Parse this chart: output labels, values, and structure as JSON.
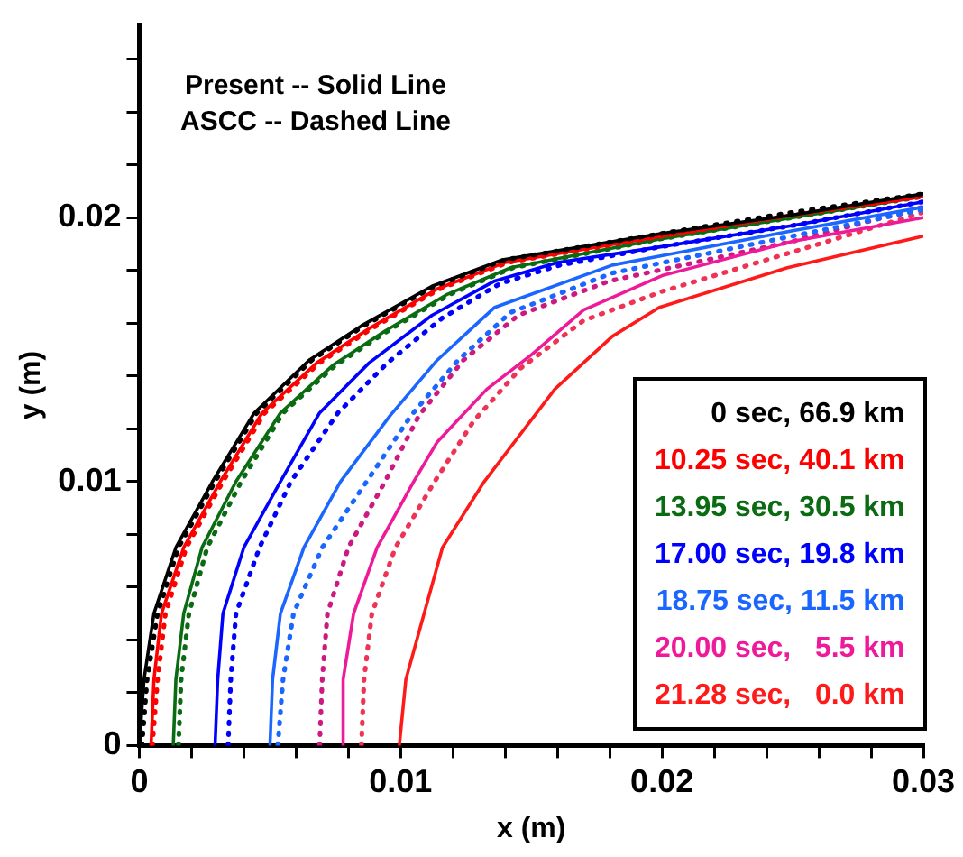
{
  "chart_data": {
    "type": "line",
    "xlabel": "x (m)",
    "ylabel": "y (m)",
    "xlim": [
      0,
      0.03
    ],
    "ylim": [
      0,
      0.0273
    ],
    "xticks": [
      0,
      {
        "value": 0.002,
        "label": null
      },
      {
        "value": 0.004,
        "label": null
      },
      {
        "value": 0.006,
        "label": null
      },
      {
        "value": 0.008,
        "label": null
      },
      0.01,
      {
        "value": 0.012,
        "label": null
      },
      {
        "value": 0.014,
        "label": null
      },
      {
        "value": 0.016,
        "label": null
      },
      {
        "value": 0.018,
        "label": null
      },
      0.02,
      {
        "value": 0.022,
        "label": null
      },
      {
        "value": 0.024,
        "label": null
      },
      {
        "value": 0.026,
        "label": null
      },
      {
        "value": 0.028,
        "label": null
      },
      0.03
    ],
    "yticks": [
      0,
      {
        "value": 0.002,
        "label": null
      },
      {
        "value": 0.004,
        "label": null
      },
      {
        "value": 0.006,
        "label": null
      },
      {
        "value": 0.008,
        "label": null
      },
      0.01,
      {
        "value": 0.012,
        "label": null
      },
      {
        "value": 0.014,
        "label": null
      },
      {
        "value": 0.016,
        "label": null
      },
      {
        "value": 0.018,
        "label": null
      },
      0.02,
      {
        "value": 0.022,
        "label": null
      },
      {
        "value": 0.024,
        "label": null
      },
      {
        "value": 0.026,
        "label": null
      }
    ],
    "grid": false,
    "legend": "bottom right",
    "marker": "none",
    "annotations": [
      "Present -- Solid Line",
      "ASCC -- Dashed Line"
    ],
    "series": [
      {
        "name": "0 sec, 66.9 km",
        "color": "#000000",
        "line_style": "solid",
        "x": [
          0,
          0.00018,
          0.00056,
          0.0014,
          0.0028,
          0.0044,
          0.0065,
          0.0085,
          0.0112,
          0.0139,
          0.02,
          0.025,
          0.03
        ],
        "values": [
          0,
          0.0025,
          0.005,
          0.0075,
          0.01,
          0.0126,
          0.0146,
          0.0159,
          0.0174,
          0.0184,
          0.0194,
          0.0201,
          0.0209
        ]
      },
      {
        "color": "#000000",
        "line_style": "dotted",
        "x": [
          0.0001,
          0.0003,
          0.0007,
          0.0015,
          0.0029,
          0.0045,
          0.0066,
          0.0086,
          0.0113,
          0.014,
          0.02,
          0.025,
          0.03
        ],
        "values": [
          0,
          0.0025,
          0.005,
          0.0075,
          0.01,
          0.0126,
          0.0146,
          0.0159,
          0.0174,
          0.0184,
          0.0194,
          0.0202,
          0.0209
        ]
      },
      {
        "name": "10.25 sec, 40.1 km",
        "color": "#ff0000",
        "line_style": "solid",
        "x": [
          0.00045,
          0.00056,
          0.00085,
          0.0017,
          0.0031,
          0.0047,
          0.0068,
          0.0088,
          0.0114,
          0.014,
          0.02,
          0.025,
          0.03
        ],
        "values": [
          0,
          0.0025,
          0.005,
          0.0075,
          0.01,
          0.0126,
          0.0145,
          0.0158,
          0.0173,
          0.0183,
          0.0193,
          0.0201,
          0.0208
        ]
      },
      {
        "color": "#ff0000",
        "line_style": "dotted",
        "x": [
          0.0005,
          0.0007,
          0.001,
          0.0018,
          0.0032,
          0.0048,
          0.0069,
          0.0089,
          0.0115,
          0.0141,
          0.02,
          0.025,
          0.03
        ],
        "values": [
          0,
          0.0025,
          0.005,
          0.0075,
          0.01,
          0.0126,
          0.0145,
          0.0158,
          0.0173,
          0.0183,
          0.0193,
          0.0201,
          0.0208
        ]
      },
      {
        "name": "13.95 sec, 30.5 km",
        "color": "#0b6b12",
        "line_style": "solid",
        "x": [
          0.0013,
          0.0014,
          0.0017,
          0.0024,
          0.0037,
          0.0054,
          0.0074,
          0.0094,
          0.0118,
          0.0142,
          0.02,
          0.025,
          0.03
        ],
        "values": [
          0,
          0.0025,
          0.005,
          0.0075,
          0.01,
          0.0126,
          0.0144,
          0.0157,
          0.0171,
          0.0181,
          0.0192,
          0.02,
          0.0208
        ]
      },
      {
        "color": "#0b6b12",
        "line_style": "dotted",
        "x": [
          0.0015,
          0.0016,
          0.0019,
          0.0026,
          0.0039,
          0.0055,
          0.0075,
          0.0095,
          0.0119,
          0.0143,
          0.02,
          0.025,
          0.03
        ],
        "values": [
          0,
          0.0025,
          0.005,
          0.0075,
          0.01,
          0.0126,
          0.0144,
          0.0157,
          0.0171,
          0.0181,
          0.0192,
          0.02,
          0.0208
        ]
      },
      {
        "name": "17.00 sec, 19.8 km",
        "color": "#0000ff",
        "line_style": "solid",
        "x": [
          0.0029,
          0.003,
          0.0032,
          0.004,
          0.0054,
          0.0069,
          0.0088,
          0.0112,
          0.0136,
          0.016,
          0.02,
          0.025,
          0.03
        ],
        "values": [
          0,
          0.0025,
          0.005,
          0.0075,
          0.01,
          0.0126,
          0.0145,
          0.0163,
          0.0176,
          0.0183,
          0.0189,
          0.0197,
          0.0206
        ]
      },
      {
        "color": "#0000ff",
        "line_style": "dotted",
        "x": [
          0.0034,
          0.0035,
          0.0037,
          0.0046,
          0.0058,
          0.0076,
          0.0095,
          0.0116,
          0.0138,
          0.0161,
          0.02,
          0.025,
          0.03
        ],
        "values": [
          0,
          0.0025,
          0.005,
          0.0075,
          0.01,
          0.0126,
          0.0145,
          0.0162,
          0.0175,
          0.0182,
          0.0189,
          0.0197,
          0.0206
        ]
      },
      {
        "name": "18.75 sec, 11.5 km",
        "color": "#1a66ff",
        "line_style": "solid",
        "x": [
          0.005,
          0.0051,
          0.0054,
          0.0063,
          0.0077,
          0.0096,
          0.0114,
          0.0136,
          0.0181,
          0.025,
          0.03
        ],
        "values": [
          0,
          0.0025,
          0.005,
          0.0075,
          0.01,
          0.0125,
          0.0146,
          0.0166,
          0.0182,
          0.0195,
          0.0204
        ]
      },
      {
        "color": "#1a66ff",
        "line_style": "dotted",
        "x": [
          0.0053,
          0.0055,
          0.0059,
          0.007,
          0.0087,
          0.0104,
          0.0122,
          0.0142,
          0.0181,
          0.025,
          0.03
        ],
        "values": [
          0,
          0.0025,
          0.005,
          0.0075,
          0.01,
          0.0125,
          0.0146,
          0.0164,
          0.0179,
          0.0193,
          0.0203
        ]
      },
      {
        "name": "20.00 sec,   5.5 km",
        "color": "#ee1a9a",
        "line_style": "solid",
        "x": [
          0.0078,
          0.0078,
          0.0082,
          0.0091,
          0.0105,
          0.0114,
          0.0133,
          0.015,
          0.017,
          0.02,
          0.025,
          0.03
        ],
        "values": [
          0,
          0.0025,
          0.005,
          0.0075,
          0.01,
          0.0115,
          0.0135,
          0.0148,
          0.0165,
          0.0178,
          0.0191,
          0.02
        ]
      },
      {
        "color": "#cc1a80",
        "line_style": "dotted",
        "x": [
          0.0069,
          0.007,
          0.0072,
          0.008,
          0.0094,
          0.0107,
          0.0124,
          0.0145,
          0.018,
          0.025,
          0.03
        ],
        "values": [
          0,
          0.0025,
          0.005,
          0.0075,
          0.01,
          0.0125,
          0.0146,
          0.0163,
          0.0176,
          0.0191,
          0.0204
        ]
      },
      {
        "name": "21.28 sec,   0.0 km",
        "color": "#ff1a1a",
        "line_style": "solid",
        "x": [
          0.00995,
          0.0102,
          0.0109,
          0.0116,
          0.0132,
          0.0159,
          0.0181,
          0.0199,
          0.0248,
          0.03
        ],
        "values": [
          0,
          0.0025,
          0.005,
          0.0075,
          0.01,
          0.0135,
          0.0155,
          0.0166,
          0.0181,
          0.0193
        ]
      },
      {
        "color": "#ee3355",
        "line_style": "dotted",
        "x": [
          0.0085,
          0.0086,
          0.0089,
          0.0098,
          0.0113,
          0.0128,
          0.0146,
          0.017,
          0.02,
          0.025,
          0.03
        ],
        "values": [
          0,
          0.0025,
          0.005,
          0.0075,
          0.01,
          0.0123,
          0.0143,
          0.0161,
          0.0172,
          0.0187,
          0.0202
        ]
      }
    ]
  }
}
